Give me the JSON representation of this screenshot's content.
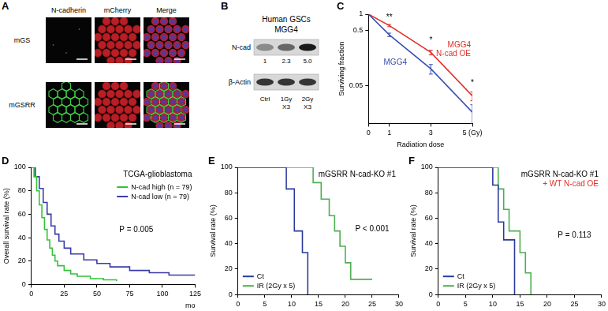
{
  "figure": {
    "panel_a": {
      "panel": "A",
      "columns": [
        "N-cadherin",
        "mCherry",
        "Merge"
      ],
      "rows": [
        "mGS",
        "mGSRR"
      ]
    },
    "panel_b": {
      "panel": "B",
      "title": "Human GSCs",
      "subtitle": "MGG4",
      "bands": [
        {
          "label": "N-cad",
          "values": [
            1,
            2.3,
            5.0
          ],
          "value_labels": [
            "1",
            "2.3",
            "5.0"
          ]
        },
        {
          "label": "β-Actin"
        }
      ],
      "lanes": [
        "Ctrl",
        "1Gy X3",
        "2Gy X3"
      ]
    }
  },
  "chart_data": [
    {
      "panel": "C",
      "type": "line",
      "xlabel": "Radiation dose",
      "ylabel": "Surviving fraction",
      "log": "y",
      "grid": false,
      "line_style": "solid",
      "xlim": [
        0,
        5
      ],
      "xticks": [
        0,
        1,
        3,
        {
          "value": 5,
          "label": "5 (Gy)"
        }
      ],
      "ylim": [
        0.01,
        1
      ],
      "yticks": [
        0.05,
        0.5,
        1
      ],
      "series": [
        {
          "name": "MGG4",
          "color": "#3a4fb5",
          "x": [
            0,
            1,
            3,
            5
          ],
          "values": [
            1,
            0.42,
            0.1,
            0.016
          ],
          "errors": [
            0,
            0.03,
            0.02,
            0.006
          ]
        },
        {
          "name": "MGG4 N-cad OE",
          "color": "#e0302a",
          "x": [
            0,
            1,
            3,
            5
          ],
          "values": [
            1,
            0.62,
            0.2,
            0.032
          ],
          "errors": [
            0,
            0.03,
            0.02,
            0.006
          ]
        }
      ],
      "annotations": [
        {
          "text": "**",
          "x": 1,
          "y": 0.8
        },
        {
          "text": "*",
          "x": 3,
          "y": 0.3
        },
        {
          "text": "*",
          "x": 5,
          "y": 0.05
        }
      ]
    },
    {
      "panel": "D",
      "type": "line",
      "title": "TCGA-glioblastoma",
      "xlabel": "mo",
      "ylabel": "Overall survival rate (%)",
      "grid": false,
      "line_style": "step",
      "legend": "upper right",
      "xlim": [
        0,
        125
      ],
      "xticks": [
        0,
        25,
        50,
        75,
        100,
        125
      ],
      "ylim": [
        0,
        100
      ],
      "yticks": [
        0,
        20,
        40,
        60,
        80,
        100
      ],
      "series": [
        {
          "name": "N-cad high (n = 79)",
          "color": "#33c23a",
          "x": [
            0,
            2,
            4,
            6,
            8,
            10,
            12,
            14,
            16,
            18,
            20,
            25,
            30,
            35,
            45,
            55,
            65
          ],
          "values": [
            100,
            92,
            80,
            68,
            57,
            47,
            38,
            31,
            25,
            20,
            16,
            12,
            9,
            7,
            5,
            4,
            3
          ]
        },
        {
          "name": "N-cad low (n = 79)",
          "color": "#3a3aa8",
          "x": [
            0,
            3,
            6,
            9,
            12,
            15,
            18,
            21,
            25,
            30,
            40,
            50,
            60,
            75,
            90,
            105,
            125
          ],
          "values": [
            100,
            92,
            82,
            70,
            60,
            50,
            43,
            37,
            31,
            26,
            21,
            18,
            15,
            12,
            10,
            8,
            8
          ]
        }
      ],
      "annotations": [
        {
          "text": "P = 0.005",
          "x": 80,
          "y": 45
        }
      ]
    },
    {
      "panel": "E",
      "type": "line",
      "title": "mGSRR N-cad-KO #1",
      "ylabel": "Survival rate (%)",
      "grid": false,
      "line_style": "step",
      "legend": "lower left",
      "xlim": [
        0,
        30
      ],
      "xticks": [
        0,
        5,
        10,
        15,
        20,
        25,
        30
      ],
      "ylim": [
        0,
        100
      ],
      "yticks": [
        0,
        20,
        40,
        60,
        80,
        100
      ],
      "series": [
        {
          "name": "Ct",
          "color": "#2b3a9b",
          "x": [
            0,
            9,
            10.5,
            12,
            13
          ],
          "values": [
            100,
            83,
            50,
            33,
            0
          ]
        },
        {
          "name": "IR (2Gy x 5)",
          "color": "#4caf50",
          "x": [
            0,
            14,
            15.5,
            17,
            18,
            19,
            20,
            21,
            25
          ],
          "values": [
            100,
            88,
            75,
            62,
            50,
            38,
            25,
            12,
            12
          ]
        }
      ],
      "annotations": [
        {
          "text": "P < 0.001",
          "x": 25,
          "y": 50
        }
      ]
    },
    {
      "panel": "F",
      "type": "line",
      "title": "mGSRR N-cad-KO #1",
      "subtitle": "+ WT N-cad OE",
      "ylabel": "Survival rate (%)",
      "grid": false,
      "line_style": "step",
      "legend": "lower left",
      "xlim": [
        0,
        30
      ],
      "xticks": [
        0,
        5,
        10,
        15,
        20,
        25,
        30
      ],
      "ylim": [
        0,
        100
      ],
      "yticks": [
        0,
        20,
        40,
        60,
        80,
        100
      ],
      "series": [
        {
          "name": "Ct",
          "color": "#2b3a9b",
          "x": [
            0,
            10,
            11,
            12,
            14
          ],
          "values": [
            100,
            86,
            57,
            43,
            0
          ]
        },
        {
          "name": "IR (2Gy x 5)",
          "color": "#4caf50",
          "x": [
            0,
            11,
            12,
            13,
            15,
            16,
            17
          ],
          "values": [
            100,
            83,
            67,
            50,
            33,
            17,
            0
          ]
        }
      ],
      "annotations": [
        {
          "text": "P = 0.113",
          "x": 25,
          "y": 45
        }
      ]
    }
  ]
}
